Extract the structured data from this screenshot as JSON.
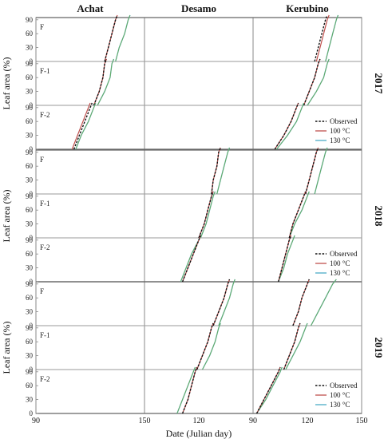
{
  "chart_data": {
    "type": "line",
    "cultivars": [
      "Achat",
      "Desamo",
      "Kerubino"
    ],
    "years": [
      "2017",
      "2018",
      "2019"
    ],
    "leaves": [
      "F",
      "F-1",
      "F-2"
    ],
    "ylabel": "Leaf area (%)",
    "xlabel": "Date (Julian day)",
    "xlim": [
      90,
      150
    ],
    "xticks": [
      90,
      120,
      150
    ],
    "xtick_labels": [
      "90",
      "120",
      "150"
    ],
    "ylim": [
      0,
      100
    ],
    "yticks": [
      0,
      30,
      60,
      90
    ],
    "ytick_labels": [
      "0",
      "30",
      "60",
      "90"
    ],
    "legend": [
      {
        "name": "Observed",
        "color": "#111111",
        "dash": true
      },
      {
        "name": "100 °C",
        "color": "#c0504d",
        "dash": false
      },
      {
        "name": "130 °C",
        "color": "#4bacc6",
        "dash": false
      }
    ],
    "legend_label_series": [
      "Observed",
      "100 °C",
      "130 °C"
    ],
    "series_colors": {
      "obs": "#111111",
      "s100": "#c0504d",
      "s130": "#4bacc6",
      "green": "#6aab5a",
      "orange": "#e39a3b"
    },
    "panels": [
      {
        "year": "2017",
        "leaf": "F",
        "cultivar": "Achat",
        "obs": [
          [
            128,
            0
          ],
          [
            130,
            30
          ],
          [
            132,
            60
          ],
          [
            134,
            90
          ],
          [
            135,
            100
          ]
        ],
        "s100": [
          [
            128,
            0
          ],
          [
            130,
            30
          ],
          [
            132,
            60
          ],
          [
            134,
            90
          ],
          [
            135,
            100
          ]
        ],
        "s130": [
          [
            134,
            0
          ],
          [
            136,
            30
          ],
          [
            139,
            60
          ],
          [
            141,
            90
          ],
          [
            142,
            100
          ]
        ]
      },
      {
        "year": "2017",
        "leaf": "F",
        "cultivar": "Kerubino",
        "obs": [
          [
            124,
            0
          ],
          [
            126,
            30
          ],
          [
            128,
            60
          ],
          [
            130,
            90
          ],
          [
            131,
            100
          ]
        ],
        "s100": [
          [
            125,
            0
          ],
          [
            127,
            30
          ],
          [
            129,
            60
          ],
          [
            131,
            90
          ],
          [
            132,
            100
          ]
        ],
        "s130": [
          [
            130,
            0
          ],
          [
            132,
            30
          ],
          [
            134,
            60
          ],
          [
            136,
            90
          ],
          [
            137,
            100
          ]
        ]
      },
      {
        "year": "2017",
        "leaf": "F-1",
        "cultivar": "Achat",
        "obs": [
          [
            122,
            0
          ],
          [
            125,
            30
          ],
          [
            127,
            60
          ],
          [
            128,
            90
          ],
          [
            129,
            100
          ]
        ],
        "s100": [
          [
            122,
            0
          ],
          [
            125,
            30
          ],
          [
            127,
            60
          ],
          [
            128,
            90
          ],
          [
            129,
            100
          ]
        ],
        "s130": [
          [
            124,
            0
          ],
          [
            128,
            30
          ],
          [
            131,
            60
          ],
          [
            132,
            90
          ],
          [
            133,
            100
          ]
        ]
      },
      {
        "year": "2017",
        "leaf": "F-1",
        "cultivar": "Kerubino",
        "obs": [
          [
            118,
            0
          ],
          [
            121,
            30
          ],
          [
            124,
            60
          ],
          [
            126,
            90
          ],
          [
            127,
            100
          ]
        ],
        "s100": [
          [
            118,
            0
          ],
          [
            121,
            30
          ],
          [
            124,
            60
          ],
          [
            126,
            90
          ],
          [
            127,
            100
          ]
        ],
        "s130": [
          [
            120,
            0
          ],
          [
            125,
            30
          ],
          [
            129,
            60
          ],
          [
            131,
            90
          ],
          [
            132,
            100
          ]
        ]
      },
      {
        "year": "2017",
        "leaf": "F-2",
        "cultivar": "Achat",
        "obs": [
          [
            111,
            0
          ],
          [
            114,
            30
          ],
          [
            117,
            60
          ],
          [
            120,
            90
          ],
          [
            121,
            100
          ]
        ],
        "s100": [
          [
            110,
            0
          ],
          [
            113,
            30
          ],
          [
            116,
            60
          ],
          [
            119,
            90
          ],
          [
            120,
            100
          ]
        ],
        "s130": [
          [
            112,
            0
          ],
          [
            115,
            30
          ],
          [
            119,
            60
          ],
          [
            122,
            90
          ],
          [
            123,
            100
          ]
        ]
      },
      {
        "year": "2017",
        "leaf": "F-2",
        "cultivar": "Kerubino",
        "obs": [
          [
            102,
            0
          ],
          [
            107,
            30
          ],
          [
            111,
            60
          ],
          [
            114,
            90
          ],
          [
            115,
            100
          ]
        ],
        "s100": [
          [
            102,
            0
          ],
          [
            107,
            30
          ],
          [
            111,
            60
          ],
          [
            114,
            90
          ],
          [
            115,
            100
          ]
        ],
        "s130": [
          [
            103,
            0
          ],
          [
            109,
            30
          ],
          [
            114,
            60
          ],
          [
            117,
            90
          ],
          [
            118,
            100
          ]
        ]
      },
      {
        "year": "2018",
        "leaf": "F",
        "cultivar": "Desamo",
        "obs": [
          [
            127,
            0
          ],
          [
            128,
            30
          ],
          [
            130,
            60
          ],
          [
            131,
            90
          ],
          [
            132,
            100
          ]
        ],
        "s100": [
          [
            127,
            0
          ],
          [
            128,
            30
          ],
          [
            130,
            60
          ],
          [
            131,
            90
          ],
          [
            132,
            100
          ]
        ],
        "s130": [
          [
            130,
            0
          ],
          [
            132,
            30
          ],
          [
            134,
            60
          ],
          [
            136,
            90
          ],
          [
            137,
            100
          ]
        ]
      },
      {
        "year": "2018",
        "leaf": "F",
        "cultivar": "Kerubino",
        "obs": [
          [
            119,
            0
          ],
          [
            121,
            30
          ],
          [
            123,
            60
          ],
          [
            125,
            90
          ],
          [
            126,
            100
          ]
        ],
        "s100": [
          [
            119,
            0
          ],
          [
            121,
            30
          ],
          [
            123,
            60
          ],
          [
            125,
            90
          ],
          [
            126,
            100
          ]
        ],
        "s130": [
          [
            124,
            0
          ],
          [
            126,
            30
          ],
          [
            128,
            60
          ],
          [
            130,
            90
          ],
          [
            131,
            100
          ]
        ]
      },
      {
        "year": "2018",
        "leaf": "F-1",
        "cultivar": "Desamo",
        "obs": [
          [
            120,
            0
          ],
          [
            123,
            30
          ],
          [
            125,
            60
          ],
          [
            127,
            90
          ],
          [
            128,
            100
          ]
        ],
        "s100": [
          [
            120,
            0
          ],
          [
            123,
            30
          ],
          [
            125,
            60
          ],
          [
            127,
            90
          ],
          [
            128,
            100
          ]
        ],
        "s130": [
          [
            121,
            0
          ],
          [
            124,
            30
          ],
          [
            126,
            60
          ],
          [
            128,
            90
          ],
          [
            129,
            100
          ]
        ]
      },
      {
        "year": "2018",
        "leaf": "F-1",
        "cultivar": "Kerubino",
        "obs": [
          [
            110,
            0
          ],
          [
            112,
            30
          ],
          [
            115,
            60
          ],
          [
            118,
            90
          ],
          [
            119,
            100
          ]
        ],
        "s100": [
          [
            110,
            0
          ],
          [
            112,
            30
          ],
          [
            115,
            60
          ],
          [
            118,
            90
          ],
          [
            119,
            100
          ]
        ],
        "s130": [
          [
            110,
            0
          ],
          [
            113,
            30
          ],
          [
            117,
            60
          ],
          [
            120,
            90
          ],
          [
            121,
            100
          ]
        ]
      },
      {
        "year": "2018",
        "leaf": "F-2",
        "cultivar": "Desamo",
        "obs": [
          [
            111,
            0
          ],
          [
            114,
            30
          ],
          [
            117,
            60
          ],
          [
            120,
            90
          ],
          [
            121,
            100
          ]
        ],
        "s100": [
          [
            111,
            0
          ],
          [
            114,
            30
          ],
          [
            117,
            60
          ],
          [
            120,
            90
          ],
          [
            121,
            100
          ]
        ],
        "s130": [
          [
            110,
            0
          ],
          [
            113,
            30
          ],
          [
            116,
            60
          ],
          [
            120,
            90
          ],
          [
            121,
            100
          ]
        ]
      },
      {
        "year": "2018",
        "leaf": "F-2",
        "cultivar": "Kerubino",
        "obs": [
          [
            104,
            0
          ],
          [
            106,
            30
          ],
          [
            108,
            60
          ],
          [
            110,
            90
          ],
          [
            111,
            100
          ]
        ],
        "s100": [
          [
            104,
            0
          ],
          [
            106,
            30
          ],
          [
            108,
            60
          ],
          [
            110,
            90
          ],
          [
            111,
            100
          ]
        ],
        "s130": [
          [
            104,
            0
          ],
          [
            107,
            30
          ],
          [
            109,
            60
          ],
          [
            112,
            90
          ],
          [
            113,
            100
          ]
        ]
      },
      {
        "year": "2019",
        "leaf": "F",
        "cultivar": "Desamo",
        "obs": [
          [
            128,
            0
          ],
          [
            131,
            30
          ],
          [
            134,
            60
          ],
          [
            136,
            90
          ],
          [
            137,
            100
          ]
        ],
        "s100": [
          [
            128,
            0
          ],
          [
            131,
            30
          ],
          [
            134,
            60
          ],
          [
            136,
            90
          ],
          [
            137,
            100
          ]
        ],
        "s130": [
          [
            131,
            0
          ],
          [
            134,
            30
          ],
          [
            137,
            60
          ],
          [
            139,
            90
          ],
          [
            140,
            100
          ]
        ]
      },
      {
        "year": "2019",
        "leaf": "F",
        "cultivar": "Kerubino",
        "obs": [
          [
            112,
            0
          ],
          [
            115,
            30
          ],
          [
            117,
            60
          ],
          [
            120,
            90
          ],
          [
            121,
            100
          ]
        ],
        "s100": [
          [
            112,
            0
          ],
          [
            115,
            30
          ],
          [
            117,
            60
          ],
          [
            120,
            90
          ],
          [
            121,
            100
          ]
        ],
        "s130": [
          [
            122,
            0
          ],
          [
            126,
            30
          ],
          [
            130,
            60
          ],
          [
            134,
            90
          ],
          [
            136,
            100
          ]
        ]
      },
      {
        "year": "2019",
        "leaf": "F-1",
        "cultivar": "Desamo",
        "obs": [
          [
            119,
            0
          ],
          [
            122,
            30
          ],
          [
            125,
            60
          ],
          [
            127,
            90
          ],
          [
            128,
            100
          ]
        ],
        "s100": [
          [
            119,
            0
          ],
          [
            122,
            30
          ],
          [
            125,
            60
          ],
          [
            127,
            90
          ],
          [
            128,
            100
          ]
        ],
        "s130": [
          [
            122,
            0
          ],
          [
            126,
            30
          ],
          [
            129,
            60
          ],
          [
            131,
            90
          ],
          [
            132,
            100
          ]
        ]
      },
      {
        "year": "2019",
        "leaf": "F-1",
        "cultivar": "Kerubino",
        "obs": [
          [
            107,
            0
          ],
          [
            110,
            30
          ],
          [
            113,
            60
          ],
          [
            115,
            90
          ],
          [
            116,
            100
          ]
        ],
        "s100": [
          [
            107,
            0
          ],
          [
            110,
            30
          ],
          [
            113,
            60
          ],
          [
            115,
            90
          ],
          [
            116,
            100
          ]
        ],
        "s130": [
          [
            108,
            0
          ],
          [
            112,
            30
          ],
          [
            116,
            60
          ],
          [
            119,
            90
          ],
          [
            120,
            100
          ]
        ]
      },
      {
        "year": "2019",
        "leaf": "F-2",
        "cultivar": "Desamo",
        "obs": [
          [
            111,
            0
          ],
          [
            114,
            30
          ],
          [
            116,
            60
          ],
          [
            118,
            90
          ],
          [
            119,
            100
          ]
        ],
        "s100": [
          [
            111,
            0
          ],
          [
            114,
            30
          ],
          [
            116,
            60
          ],
          [
            118,
            90
          ],
          [
            119,
            100
          ]
        ],
        "s130": [
          [
            108,
            0
          ],
          [
            111,
            30
          ],
          [
            114,
            60
          ],
          [
            117,
            90
          ],
          [
            118,
            100
          ]
        ]
      },
      {
        "year": "2019",
        "leaf": "F-2",
        "cultivar": "Kerubino",
        "obs": [
          [
            92,
            0
          ],
          [
            96,
            30
          ],
          [
            100,
            60
          ],
          [
            104,
            90
          ],
          [
            105,
            100
          ]
        ],
        "s100": [
          [
            92,
            0
          ],
          [
            96,
            30
          ],
          [
            100,
            60
          ],
          [
            104,
            90
          ],
          [
            105,
            100
          ]
        ],
        "s130": [
          [
            92,
            0
          ],
          [
            97,
            30
          ],
          [
            101,
            60
          ],
          [
            105,
            90
          ],
          [
            106,
            100
          ]
        ]
      }
    ]
  }
}
